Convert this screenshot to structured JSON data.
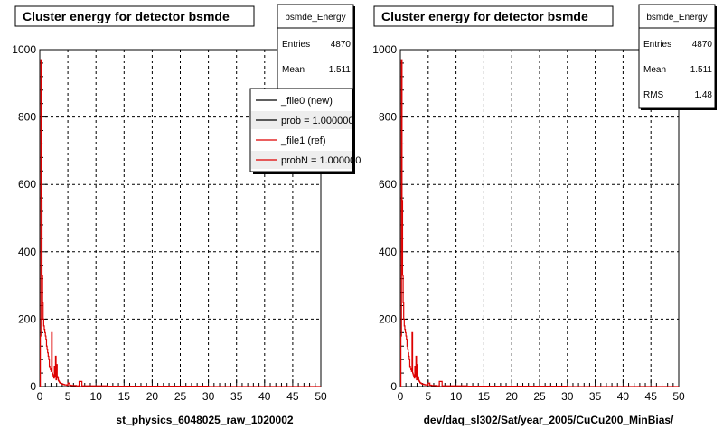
{
  "colors": {
    "new_series": "#000000",
    "ref_series": "#dd0000",
    "frame": "#000000",
    "grid": "#000000"
  },
  "chart_data": [
    {
      "type": "line",
      "title": "Cluster energy for detector bsmde",
      "xlabel": "st_physics_6048025_raw_1020002",
      "ylabel": "",
      "xlim": [
        0,
        50
      ],
      "ylim": [
        0,
        1000
      ],
      "x_ticks": [
        "0",
        "5",
        "10",
        "15",
        "20",
        "25",
        "30",
        "35",
        "40",
        "45",
        "50"
      ],
      "y_ticks": [
        "0",
        "200",
        "400",
        "600",
        "800",
        "1000"
      ],
      "grid": true,
      "stats": {
        "name": "bsmde_Energy",
        "rows": [
          {
            "label": "Entries",
            "value": "4870"
          },
          {
            "label": "Mean",
            "value": "1.511"
          }
        ]
      },
      "legend": {
        "placement": "top-right",
        "entries": [
          {
            "label": "_file0 (new)",
            "color": "#000000"
          },
          {
            "label": "prob = 1.000000",
            "color": "#000000"
          },
          {
            "label": "_file1 (ref)",
            "color": "#dd0000"
          },
          {
            "label": "probN = 1.000000",
            "color": "#dd0000"
          }
        ]
      },
      "series": [
        {
          "color": "#dd0000",
          "x": [
            0.0,
            0.1,
            0.2,
            0.3,
            0.4,
            0.5,
            0.6,
            0.7,
            0.8,
            0.9,
            1.0,
            1.1,
            1.2,
            1.3,
            1.4,
            1.5,
            1.6,
            1.7,
            1.8,
            1.9,
            2.0,
            2.1,
            2.2,
            2.3,
            2.4,
            2.5,
            2.6,
            2.7,
            2.8,
            2.9,
            3.0,
            3.1,
            3.2,
            3.3,
            3.4,
            3.5,
            3.6,
            3.7,
            3.8,
            3.9,
            4.0,
            4.2,
            4.4,
            4.6,
            4.8,
            5.0,
            5.3,
            5.6,
            6.0,
            6.5,
            7.0,
            7.5,
            8.0,
            9.0,
            10.0,
            12.0,
            15.0,
            20.0,
            30.0,
            50.0
          ],
          "y": [
            0,
            150,
            970,
            550,
            330,
            250,
            200,
            180,
            170,
            160,
            150,
            140,
            120,
            110,
            100,
            90,
            80,
            60,
            55,
            50,
            45,
            160,
            40,
            35,
            30,
            25,
            60,
            28,
            90,
            20,
            65,
            30,
            25,
            18,
            15,
            12,
            10,
            10,
            8,
            8,
            7,
            6,
            5,
            5,
            4,
            10,
            4,
            3,
            3,
            2,
            15,
            2,
            2,
            2,
            2,
            1,
            1,
            1,
            0,
            0
          ]
        }
      ]
    },
    {
      "type": "line",
      "title": "Cluster energy for detector bsmde",
      "xlabel": "dev/daq_sl302/Sat/year_2005/CuCu200_MinBias/",
      "ylabel": "",
      "xlim": [
        0,
        50
      ],
      "ylim": [
        0,
        1000
      ],
      "x_ticks": [
        "0",
        "5",
        "10",
        "15",
        "20",
        "25",
        "30",
        "35",
        "40",
        "45",
        "50"
      ],
      "y_ticks": [
        "0",
        "200",
        "400",
        "600",
        "800",
        "1000"
      ],
      "grid": true,
      "stats": {
        "name": "bsmde_Energy",
        "rows": [
          {
            "label": "Entries",
            "value": "4870"
          },
          {
            "label": "Mean",
            "value": "1.511"
          },
          {
            "label": "RMS",
            "value": "1.48"
          }
        ]
      },
      "series": [
        {
          "color": "#dd0000",
          "x": [
            0.0,
            0.1,
            0.2,
            0.3,
            0.4,
            0.5,
            0.6,
            0.7,
            0.8,
            0.9,
            1.0,
            1.1,
            1.2,
            1.3,
            1.4,
            1.5,
            1.6,
            1.7,
            1.8,
            1.9,
            2.0,
            2.1,
            2.2,
            2.3,
            2.4,
            2.5,
            2.6,
            2.7,
            2.8,
            2.9,
            3.0,
            3.1,
            3.2,
            3.3,
            3.4,
            3.5,
            3.6,
            3.7,
            3.8,
            3.9,
            4.0,
            4.2,
            4.4,
            4.6,
            4.8,
            5.0,
            5.3,
            5.6,
            6.0,
            6.5,
            7.0,
            7.5,
            8.0,
            9.0,
            10.0,
            12.0,
            15.0,
            20.0,
            30.0,
            50.0
          ],
          "y": [
            0,
            150,
            970,
            550,
            330,
            250,
            200,
            180,
            170,
            160,
            150,
            140,
            120,
            110,
            100,
            90,
            80,
            60,
            55,
            50,
            45,
            160,
            40,
            35,
            30,
            25,
            60,
            28,
            90,
            20,
            65,
            30,
            25,
            18,
            15,
            12,
            10,
            10,
            8,
            8,
            7,
            6,
            5,
            5,
            4,
            10,
            4,
            3,
            3,
            2,
            15,
            2,
            2,
            2,
            2,
            1,
            1,
            1,
            0,
            0
          ]
        }
      ]
    }
  ]
}
